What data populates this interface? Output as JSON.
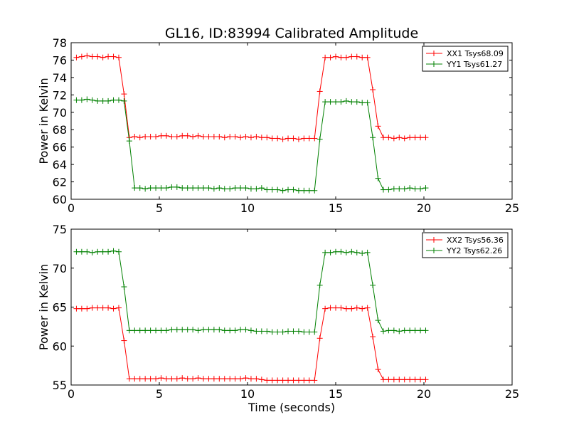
{
  "figure": {
    "title": "GL16, ID:83994 Calibrated Amplitude"
  },
  "colors": {
    "red": "#ff0000",
    "green": "#008000"
  },
  "chart_data": [
    {
      "type": "line",
      "title": "GL16, ID:83994 Calibrated Amplitude",
      "xlabel": "",
      "ylabel": "Power in Kelvin",
      "xlim": [
        0,
        25
      ],
      "ylim": [
        60,
        78
      ],
      "xticks": [
        0,
        5,
        10,
        15,
        20,
        25
      ],
      "yticks": [
        60,
        62,
        64,
        66,
        68,
        70,
        72,
        74,
        76,
        78
      ],
      "legend_position": "top-right",
      "grid": false,
      "x": [
        0.3,
        0.6,
        0.9,
        1.2,
        1.5,
        1.8,
        2.1,
        2.4,
        2.7,
        3.0,
        3.3,
        3.6,
        3.9,
        4.2,
        4.5,
        4.8,
        5.1,
        5.4,
        5.7,
        6.0,
        6.3,
        6.6,
        6.9,
        7.2,
        7.5,
        7.8,
        8.1,
        8.4,
        8.7,
        9.0,
        9.3,
        9.6,
        9.9,
        10.2,
        10.5,
        10.8,
        11.1,
        11.4,
        11.7,
        12.0,
        12.3,
        12.6,
        12.9,
        13.2,
        13.5,
        13.8,
        14.1,
        14.4,
        14.7,
        15.0,
        15.3,
        15.6,
        15.9,
        16.2,
        16.5,
        16.8,
        17.1,
        17.4,
        17.7,
        18.0,
        18.3,
        18.6,
        18.9,
        19.2,
        19.5,
        19.8,
        20.1
      ],
      "series": [
        {
          "name": "XX1 Tsys68.09",
          "color": "red",
          "values": [
            76.3,
            76.4,
            76.5,
            76.4,
            76.4,
            76.3,
            76.4,
            76.4,
            76.3,
            72.1,
            67.1,
            67.2,
            67.1,
            67.2,
            67.2,
            67.2,
            67.3,
            67.3,
            67.2,
            67.2,
            67.3,
            67.3,
            67.2,
            67.3,
            67.2,
            67.2,
            67.2,
            67.2,
            67.1,
            67.2,
            67.2,
            67.1,
            67.2,
            67.1,
            67.2,
            67.1,
            67.1,
            67.0,
            67.0,
            66.9,
            67.0,
            67.0,
            66.9,
            67.0,
            67.0,
            67.0,
            72.4,
            76.3,
            76.3,
            76.4,
            76.3,
            76.3,
            76.4,
            76.4,
            76.3,
            76.3,
            72.6,
            68.4,
            67.1,
            67.1,
            67.0,
            67.1,
            67.0,
            67.1,
            67.1,
            67.1,
            67.1
          ]
        },
        {
          "name": "YY1 Tsys61.27",
          "color": "green",
          "values": [
            71.4,
            71.4,
            71.5,
            71.4,
            71.3,
            71.3,
            71.3,
            71.4,
            71.4,
            71.3,
            66.7,
            61.3,
            61.3,
            61.2,
            61.3,
            61.3,
            61.3,
            61.3,
            61.4,
            61.4,
            61.3,
            61.3,
            61.3,
            61.3,
            61.3,
            61.3,
            61.2,
            61.3,
            61.2,
            61.2,
            61.3,
            61.3,
            61.3,
            61.2,
            61.2,
            61.3,
            61.1,
            61.1,
            61.1,
            61.0,
            61.1,
            61.1,
            61.0,
            61.0,
            61.0,
            61.0,
            66.9,
            71.2,
            71.2,
            71.2,
            71.2,
            71.3,
            71.2,
            71.2,
            71.1,
            71.1,
            67.1,
            62.4,
            61.1,
            61.1,
            61.2,
            61.2,
            61.2,
            61.3,
            61.2,
            61.2,
            61.3
          ]
        }
      ]
    },
    {
      "type": "line",
      "title": "",
      "xlabel": "Time (seconds)",
      "ylabel": "Power in Kelvin",
      "xlim": [
        0,
        25
      ],
      "ylim": [
        55,
        75
      ],
      "xticks": [
        0,
        5,
        10,
        15,
        20,
        25
      ],
      "yticks": [
        55,
        60,
        65,
        70,
        75
      ],
      "legend_position": "top-right",
      "grid": false,
      "x": [
        0.3,
        0.6,
        0.9,
        1.2,
        1.5,
        1.8,
        2.1,
        2.4,
        2.7,
        3.0,
        3.3,
        3.6,
        3.9,
        4.2,
        4.5,
        4.8,
        5.1,
        5.4,
        5.7,
        6.0,
        6.3,
        6.6,
        6.9,
        7.2,
        7.5,
        7.8,
        8.1,
        8.4,
        8.7,
        9.0,
        9.3,
        9.6,
        9.9,
        10.2,
        10.5,
        10.8,
        11.1,
        11.4,
        11.7,
        12.0,
        12.3,
        12.6,
        12.9,
        13.2,
        13.5,
        13.8,
        14.1,
        14.4,
        14.7,
        15.0,
        15.3,
        15.6,
        15.9,
        16.2,
        16.5,
        16.8,
        17.1,
        17.4,
        17.7,
        18.0,
        18.3,
        18.6,
        18.9,
        19.2,
        19.5,
        19.8,
        20.1
      ],
      "series": [
        {
          "name": "XX2 Tsys56.36",
          "color": "red",
          "values": [
            64.8,
            64.8,
            64.8,
            64.9,
            64.9,
            64.9,
            64.9,
            64.8,
            64.9,
            60.7,
            55.8,
            55.8,
            55.8,
            55.8,
            55.8,
            55.8,
            55.9,
            55.8,
            55.8,
            55.8,
            55.9,
            55.8,
            55.8,
            55.9,
            55.8,
            55.8,
            55.8,
            55.8,
            55.8,
            55.8,
            55.8,
            55.8,
            55.9,
            55.8,
            55.8,
            55.7,
            55.6,
            55.6,
            55.6,
            55.6,
            55.6,
            55.6,
            55.6,
            55.6,
            55.6,
            55.6,
            61.0,
            64.8,
            64.9,
            64.9,
            64.9,
            64.8,
            64.8,
            64.9,
            64.8,
            64.9,
            61.2,
            57.0,
            55.7,
            55.7,
            55.7,
            55.7,
            55.7,
            55.7,
            55.7,
            55.7,
            55.7
          ]
        },
        {
          "name": "YY2 Tsys62.26",
          "color": "green",
          "values": [
            72.1,
            72.1,
            72.1,
            72.0,
            72.1,
            72.1,
            72.1,
            72.2,
            72.1,
            67.6,
            62.0,
            62.0,
            62.0,
            62.0,
            62.0,
            62.0,
            62.0,
            62.0,
            62.1,
            62.1,
            62.1,
            62.1,
            62.1,
            62.0,
            62.1,
            62.1,
            62.1,
            62.1,
            62.0,
            62.0,
            62.0,
            62.1,
            62.1,
            62.0,
            61.9,
            61.9,
            61.9,
            61.8,
            61.8,
            61.8,
            61.9,
            61.9,
            61.9,
            61.8,
            61.8,
            61.8,
            67.8,
            72.0,
            72.0,
            72.1,
            72.1,
            72.0,
            72.1,
            72.0,
            71.9,
            72.0,
            67.8,
            63.3,
            61.9,
            62.0,
            62.0,
            61.9,
            62.0,
            62.0,
            62.0,
            62.0,
            62.0
          ]
        }
      ]
    }
  ]
}
